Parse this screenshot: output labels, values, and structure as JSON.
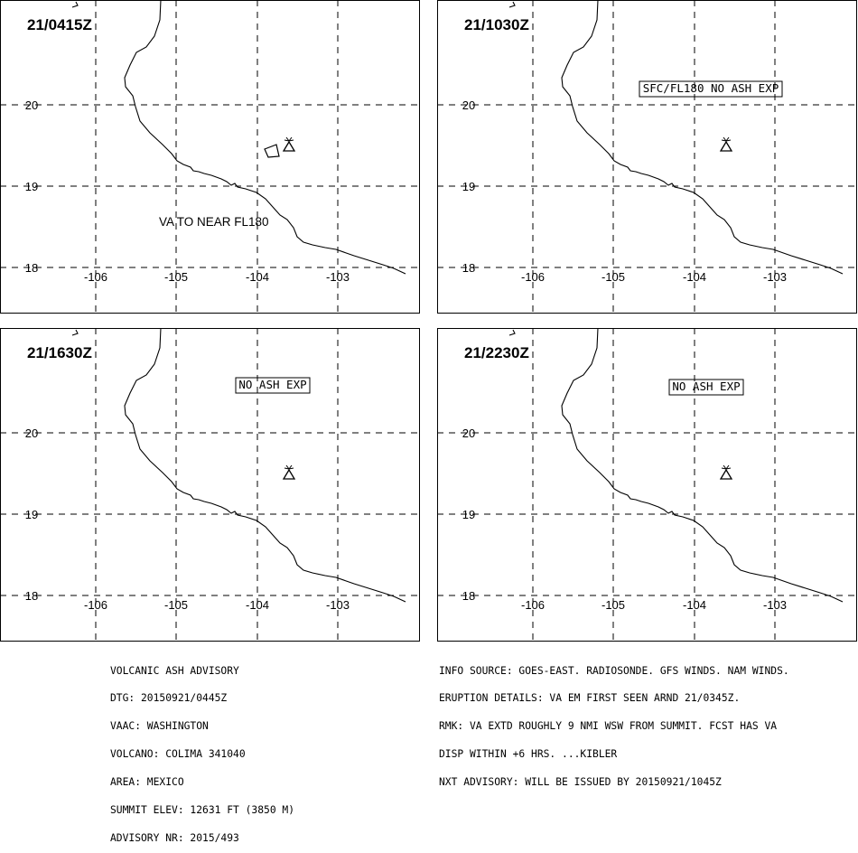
{
  "panels": [
    {
      "time": "21/0415Z",
      "label": "VA TO NEAR FL180",
      "label_style": "plain",
      "ash_polygon": true
    },
    {
      "time": "21/1030Z",
      "label": "SFC/FL180 NO ASH EXP",
      "label_style": "boxed",
      "ash_polygon": false
    },
    {
      "time": "21/1630Z",
      "label": "NO ASH EXP",
      "label_style": "boxed",
      "ash_polygon": false
    },
    {
      "time": "21/2230Z",
      "label": "NO ASH EXP",
      "label_style": "boxed",
      "ash_polygon": false
    }
  ],
  "axes": {
    "lon_ticks": [
      "-106",
      "-105",
      "-104",
      "-103"
    ],
    "lat_ticks": [
      "20",
      "19",
      "18"
    ]
  },
  "volcano_icon": "volcano-triangle-icon",
  "advisory_left": [
    "VOLCANIC ASH ADVISORY",
    "DTG: 20150921/0445Z",
    "VAAC: WASHINGTON",
    "VOLCANO: COLIMA 341040",
    "AREA: MEXICO",
    "SUMMIT ELEV: 12631 FT (3850 M)",
    "ADVISORY NR: 2015/493"
  ],
  "advisory_right": [
    "INFO SOURCE: GOES-EAST. RADIOSONDE. GFS WINDS. NAM WINDS.",
    "ERUPTION DETAILS: VA EM FIRST SEEN ARND 21/0345Z.",
    "RMK: VA EXTD ROUGHLY 9 NMI WSW FROM SUMMIT. FCST HAS VA",
    "DISP WITHIN +6 HRS. ...KIBLER",
    "NXT ADVISORY: WILL BE ISSUED BY 20150921/1045Z"
  ]
}
